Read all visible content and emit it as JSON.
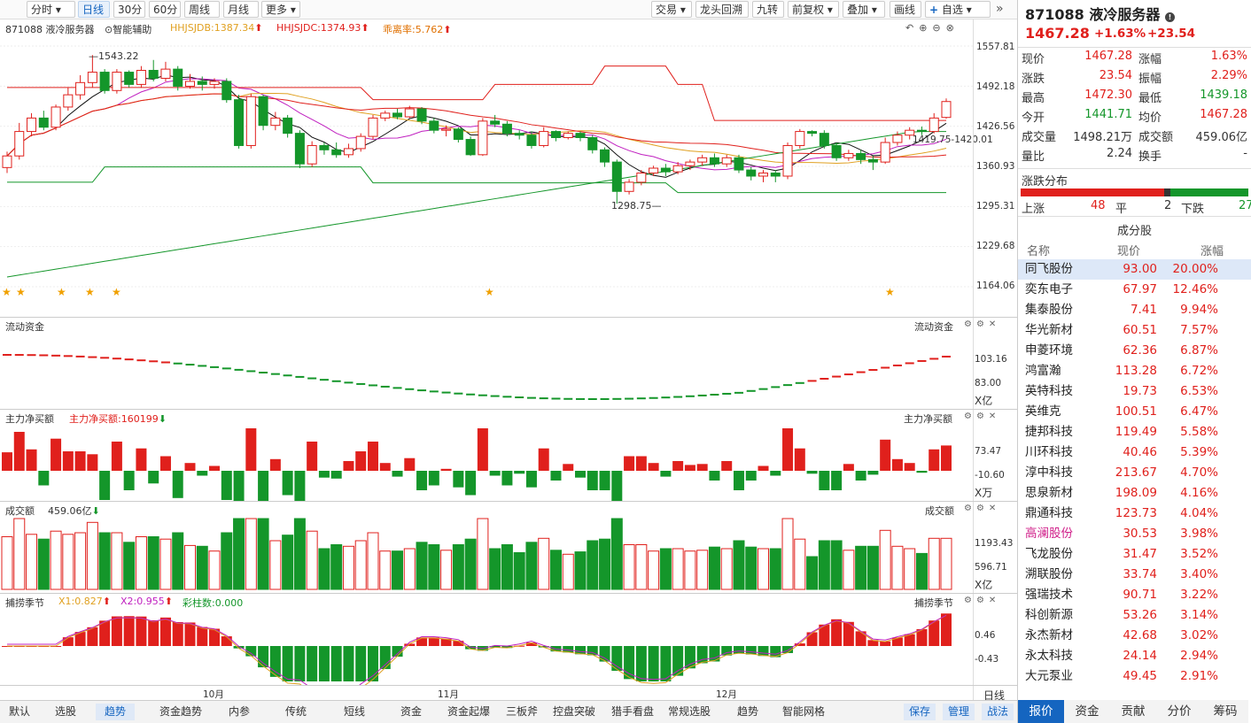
{
  "toolbar": {
    "items": [
      "分时",
      "日线",
      "30分",
      "60分",
      "周线",
      "月线",
      "更多",
      "交易",
      "龙头回溯",
      "九转",
      "前复权",
      "叠加",
      "画线",
      "自选"
    ],
    "active": "日线"
  },
  "chart_header": {
    "code_name": "871088 液冷服务器",
    "aux": "智能辅助",
    "ind1": "HHJSJDB:1387.34",
    "ind2": "HHJSJDC:1374.93",
    "ind3": "乖离率:5.762"
  },
  "price_axis": [
    "1557.81",
    "1492.18",
    "1426.56",
    "1360.93",
    "1295.31",
    "1229.68",
    "1164.06"
  ],
  "annotations": {
    "high": "1543.22",
    "low": "1298.75",
    "cursor": "1419.75-1420.01"
  },
  "panels": {
    "flow": {
      "title": "流动资金",
      "right_title": "流动资金",
      "ticks": [
        "103.16",
        "83.00"
      ],
      "unit": "X亿"
    },
    "net": {
      "title": "主力净买额",
      "value": "主力净买额:160199",
      "right_title": "主力净买额",
      "ticks": [
        "73.47",
        "-10.60"
      ],
      "unit": "X万"
    },
    "amt": {
      "title": "成交额",
      "value": "459.06亿",
      "right_title": "成交额",
      "ticks": [
        "1193.43",
        "596.71"
      ],
      "unit": "X亿"
    },
    "season": {
      "title": "捕捞季节",
      "x1": "X1:0.827",
      "x2": "X2:0.955",
      "bars": "彩柱数:0.000",
      "right_title": "捕捞季节",
      "ticks": [
        "0.46",
        "-0.43"
      ]
    }
  },
  "months": [
    "10月",
    "11月",
    "12月"
  ],
  "period": "日线",
  "bottom_tabs": [
    "默认",
    "选股",
    "趋势",
    "资金趋势",
    "内参",
    "传统",
    "短线",
    "资金",
    "资金起爆",
    "三板斧",
    "控盘突破",
    "猎手看盘",
    "常规选股",
    "趋势",
    "智能网格"
  ],
  "bottom_active": "趋势",
  "bottom_right": [
    "保存",
    "管理",
    "战法"
  ],
  "quote": {
    "code": "871088",
    "name": "液冷服务器",
    "price": "1467.28",
    "pct": "+1.63%",
    "chg": "+23.54",
    "fields": [
      [
        "现价",
        "1467.28",
        "涨幅",
        "1.63%"
      ],
      [
        "涨跌",
        "23.54",
        "振幅",
        "2.29%"
      ],
      [
        "最高",
        "1472.30",
        "最低",
        "1439.18"
      ],
      [
        "今开",
        "1441.71",
        "均价",
        "1467.28"
      ],
      [
        "成交量",
        "1498.21万",
        "成交额",
        "459.06亿"
      ],
      [
        "量比",
        "2.24",
        "换手",
        "-"
      ]
    ],
    "dist_title": "涨跌分布",
    "up_label": "上涨",
    "up": "48",
    "flat_label": "平",
    "flat": "2",
    "down_label": "下跌",
    "down": "27",
    "cons_title": "成分股",
    "cols": [
      "名称",
      "现价",
      "涨幅"
    ],
    "stocks": [
      [
        "同飞股份",
        "93.00",
        "20.00%"
      ],
      [
        "奕东电子",
        "67.97",
        "12.46%"
      ],
      [
        "集泰股份",
        "7.41",
        "9.94%"
      ],
      [
        "华光新材",
        "60.51",
        "7.57%"
      ],
      [
        "申菱环境",
        "62.36",
        "6.87%"
      ],
      [
        "鸿富瀚",
        "113.28",
        "6.72%"
      ],
      [
        "英特科技",
        "19.73",
        "6.53%"
      ],
      [
        "英维克",
        "100.51",
        "6.47%"
      ],
      [
        "捷邦科技",
        "119.49",
        "5.58%"
      ],
      [
        "川环科技",
        "40.46",
        "5.39%"
      ],
      [
        "淳中科技",
        "213.67",
        "4.70%"
      ],
      [
        "思泉新材",
        "198.09",
        "4.16%"
      ],
      [
        "鼎通科技",
        "123.73",
        "4.04%"
      ],
      [
        "高澜股份",
        "30.53",
        "3.98%"
      ],
      [
        "飞龙股份",
        "31.47",
        "3.52%"
      ],
      [
        "溯联股份",
        "33.74",
        "3.40%"
      ],
      [
        "强瑞技术",
        "90.71",
        "3.22%"
      ],
      [
        "科创新源",
        "53.26",
        "3.14%"
      ],
      [
        "永杰新材",
        "42.68",
        "3.02%"
      ],
      [
        "永太科技",
        "24.14",
        "2.94%"
      ],
      [
        "大元泵业",
        "49.45",
        "2.91%"
      ]
    ]
  },
  "right_tabs": [
    "报价",
    "资金",
    "贡献",
    "分价",
    "筹码"
  ],
  "right_active": "报价",
  "chart_data": {
    "type": "candlestick",
    "candles": [
      [
        1359,
        1378,
        1350,
        1385
      ],
      [
        1378,
        1418,
        1372,
        1432
      ],
      [
        1418,
        1440,
        1410,
        1448
      ],
      [
        1440,
        1425,
        1420,
        1452
      ],
      [
        1425,
        1458,
        1420,
        1462
      ],
      [
        1458,
        1478,
        1452,
        1490
      ],
      [
        1478,
        1498,
        1470,
        1510
      ],
      [
        1498,
        1515,
        1490,
        1543
      ],
      [
        1515,
        1485,
        1480,
        1520
      ],
      [
        1485,
        1515,
        1480,
        1520
      ],
      [
        1515,
        1495,
        1490,
        1518
      ],
      [
        1495,
        1518,
        1490,
        1525
      ],
      [
        1518,
        1505,
        1500,
        1535
      ],
      [
        1505,
        1520,
        1500,
        1532
      ],
      [
        1520,
        1492,
        1485,
        1525
      ],
      [
        1492,
        1500,
        1488,
        1512
      ],
      [
        1500,
        1495,
        1485,
        1508
      ],
      [
        1495,
        1500,
        1488,
        1505
      ],
      [
        1500,
        1470,
        1465,
        1505
      ],
      [
        1470,
        1395,
        1390,
        1478
      ],
      [
        1395,
        1475,
        1390,
        1480
      ],
      [
        1475,
        1428,
        1420,
        1478
      ],
      [
        1428,
        1440,
        1420,
        1450
      ],
      [
        1440,
        1415,
        1408,
        1445
      ],
      [
        1415,
        1365,
        1358,
        1420
      ],
      [
        1365,
        1395,
        1360,
        1402
      ],
      [
        1395,
        1388,
        1380,
        1400
      ],
      [
        1388,
        1380,
        1375,
        1400
      ],
      [
        1380,
        1390,
        1375,
        1398
      ],
      [
        1390,
        1410,
        1385,
        1415
      ],
      [
        1410,
        1440,
        1405,
        1445
      ],
      [
        1440,
        1448,
        1435,
        1452
      ],
      [
        1448,
        1442,
        1438,
        1455
      ],
      [
        1442,
        1455,
        1440,
        1460
      ],
      [
        1455,
        1435,
        1430,
        1458
      ],
      [
        1435,
        1420,
        1415,
        1440
      ],
      [
        1420,
        1422,
        1410,
        1428
      ],
      [
        1422,
        1405,
        1400,
        1425
      ],
      [
        1405,
        1380,
        1378,
        1410
      ],
      [
        1380,
        1435,
        1378,
        1440
      ],
      [
        1435,
        1430,
        1425,
        1445
      ],
      [
        1430,
        1415,
        1410,
        1435
      ],
      [
        1415,
        1412,
        1405,
        1420
      ],
      [
        1412,
        1395,
        1390,
        1418
      ],
      [
        1395,
        1418,
        1392,
        1425
      ],
      [
        1418,
        1408,
        1402,
        1420
      ],
      [
        1408,
        1415,
        1405,
        1418
      ],
      [
        1415,
        1408,
        1402,
        1418
      ],
      [
        1408,
        1388,
        1382,
        1412
      ],
      [
        1388,
        1368,
        1360,
        1392
      ],
      [
        1368,
        1320,
        1300,
        1372
      ],
      [
        1320,
        1335,
        1315,
        1340
      ],
      [
        1335,
        1350,
        1330,
        1355
      ],
      [
        1350,
        1358,
        1345,
        1362
      ],
      [
        1358,
        1352,
        1345,
        1365
      ],
      [
        1352,
        1362,
        1348,
        1368
      ],
      [
        1362,
        1368,
        1355,
        1372
      ],
      [
        1368,
        1375,
        1362,
        1380
      ],
      [
        1375,
        1365,
        1360,
        1382
      ],
      [
        1365,
        1375,
        1360,
        1380
      ],
      [
        1375,
        1355,
        1350,
        1380
      ],
      [
        1355,
        1345,
        1338,
        1360
      ],
      [
        1345,
        1350,
        1335,
        1355
      ],
      [
        1350,
        1345,
        1335,
        1355
      ],
      [
        1345,
        1395,
        1340,
        1400
      ],
      [
        1395,
        1418,
        1390,
        1422
      ],
      [
        1418,
        1415,
        1410,
        1420
      ],
      [
        1415,
        1395,
        1390,
        1420
      ],
      [
        1395,
        1375,
        1370,
        1400
      ],
      [
        1375,
        1382,
        1370,
        1388
      ],
      [
        1382,
        1372,
        1365,
        1388
      ],
      [
        1372,
        1368,
        1355,
        1378
      ],
      [
        1368,
        1400,
        1365,
        1408
      ],
      [
        1400,
        1412,
        1395,
        1418
      ],
      [
        1412,
        1420,
        1405,
        1425
      ],
      [
        1420,
        1418,
        1412,
        1426
      ],
      [
        1418,
        1440,
        1415,
        1448
      ],
      [
        1441,
        1467,
        1439,
        1472
      ]
    ],
    "ylim": [
      1164.06,
      1557.81
    ]
  }
}
